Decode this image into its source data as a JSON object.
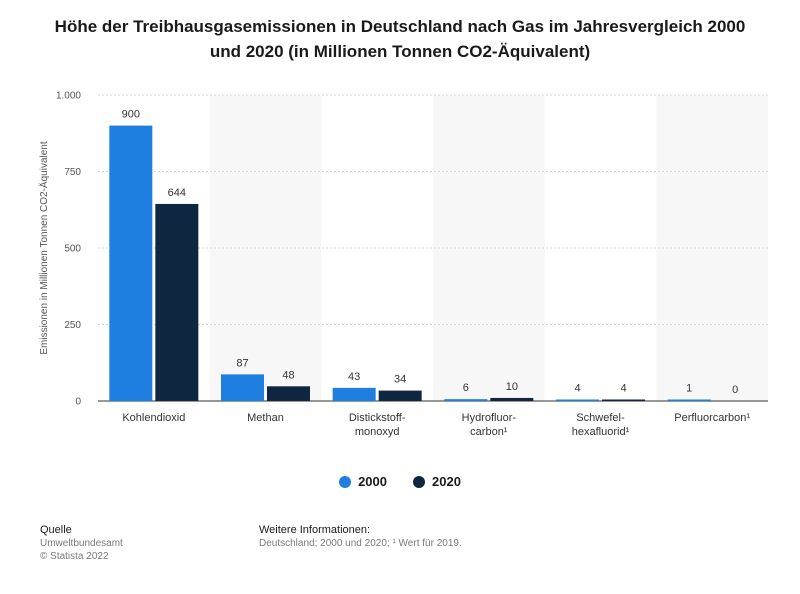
{
  "title": "Höhe der Treibhausgasemissionen in Deutschland nach Gas im Jahresvergleich 2000 und 2020 (in Millionen Tonnen CO2-Äquivalent)",
  "colors": {
    "series_2000": "#1f7fe0",
    "series_2020": "#0f2640"
  },
  "chart_data": {
    "type": "bar",
    "title": "Höhe der Treibhausgasemissionen in Deutschland nach Gas im Jahresvergleich 2000 und 2020 (in Millionen Tonnen CO2-Äquivalent)",
    "xlabel": "",
    "ylabel": "Emissionen in Millionen Tonnen CO2-Äquivalent",
    "ylim": [
      0,
      1000
    ],
    "yticks": [
      0,
      250,
      500,
      750,
      1000
    ],
    "ytick_labels": [
      "0",
      "250",
      "500",
      "750",
      "1.000"
    ],
    "categories": [
      [
        "Kohlendioxid"
      ],
      [
        "Methan"
      ],
      [
        "Distickstoff-",
        "monoxyd"
      ],
      [
        "Hydrofluor-",
        "carbon¹"
      ],
      [
        "Schwefel-",
        "hexafluorid¹"
      ],
      [
        "Perfluorcarbon¹"
      ]
    ],
    "series": [
      {
        "name": "2000",
        "values": [
          900,
          87,
          43,
          6,
          4,
          1
        ]
      },
      {
        "name": "2020",
        "values": [
          644,
          48,
          34,
          10,
          4,
          0
        ]
      }
    ],
    "legend": "bottom-center",
    "grid": true
  },
  "footer": {
    "source_heading": "Quelle",
    "source_name": "Umweltbundesamt",
    "copyright": "© Statista 2022",
    "info_heading": "Weitere Informationen:",
    "info_text": "Deutschland; 2000 und 2020; ¹ Wert für 2019."
  }
}
